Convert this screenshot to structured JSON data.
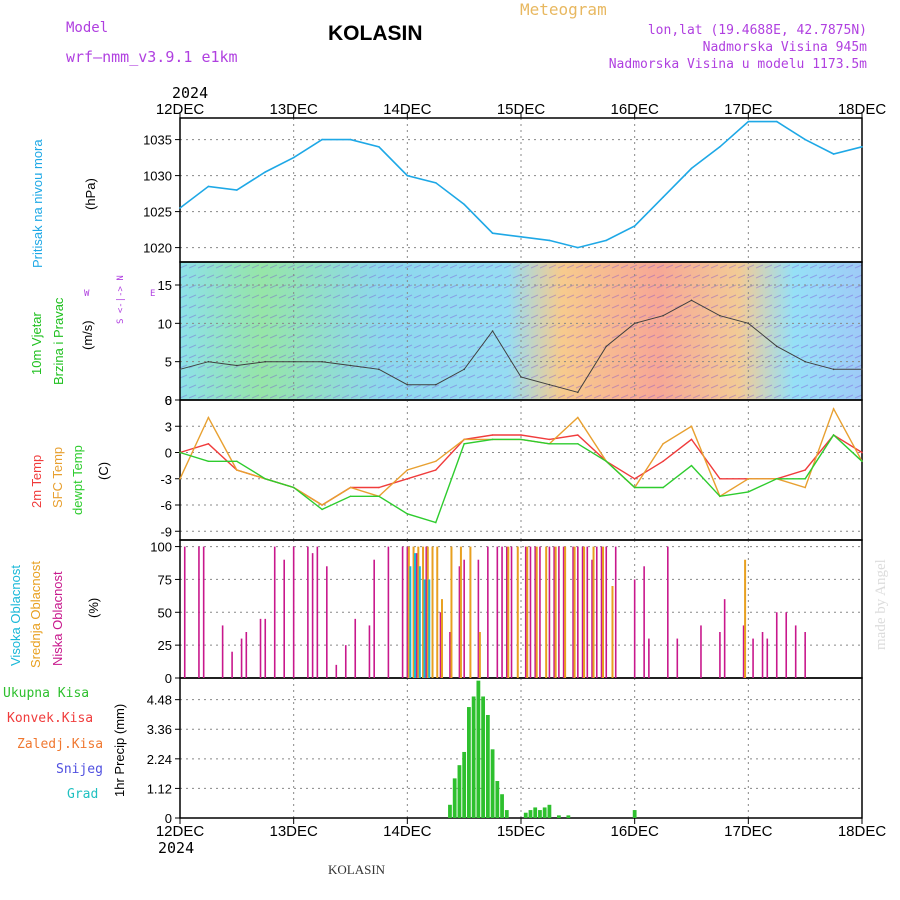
{
  "header": {
    "model_label": "Model",
    "model_value": "wrf–nmm_v3.9.1  e1km",
    "station": "KOLASIN",
    "title": "Meteogram",
    "lonlat": "lon,lat (19.4688E, 42.7875N)",
    "elevation": "Nadmorska Visina 945m",
    "model_elevation": "Nadmorska Visina u modelu 1173.5m",
    "year_top": "2024",
    "year_bottom": "2024",
    "footer": "KOLASIN",
    "watermark": "made by Angel"
  },
  "colors": {
    "pressure": "#1ea8e6",
    "temp2m": "#f03c3c",
    "sfc": "#e8a030",
    "dewpt": "#2ecc2e",
    "high_cloud": "#1ab8d8",
    "mid_cloud": "#e8a020",
    "low_cloud": "#c8188c",
    "precip": "#2ec02e",
    "wind_label": "#20c020",
    "purple": "#b040e0"
  },
  "x_axis": {
    "ticks": [
      "12DEC",
      "13DEC",
      "14DEC",
      "15DEC",
      "16DEC",
      "17DEC",
      "18DEC"
    ]
  },
  "panels": {
    "pressure": {
      "label": "Pritisak na nivou mora",
      "unit": "(hPa)",
      "ticks": [
        "1020",
        "1025",
        "1030",
        "1035"
      ]
    },
    "wind": {
      "label1": "10m Vjetar",
      "label2": "Brzina i Pravac",
      "unit": "(m/s)",
      "compass_ns": "S <-|-> N",
      "compass_w": "W",
      "compass_e": "E",
      "ticks": [
        "0",
        "5",
        "10",
        "15"
      ]
    },
    "temp": {
      "label1": "2m Temp",
      "label2": "SFC Temp",
      "label3": "dewpt Temp",
      "unit": "(C)",
      "ticks": [
        "-9",
        "-6",
        "-3",
        "0",
        "3",
        "6"
      ]
    },
    "cloud": {
      "label1": "Visoka Oblacnost",
      "label2": "Srednja Oblacnost",
      "label3": "Niska Oblacnost",
      "unit": "(%)",
      "ticks": [
        "0",
        "25",
        "50",
        "75",
        "100"
      ]
    },
    "precip": {
      "label_total": "Ukupna Kisa",
      "label_conv": "Konvek.Kisa",
      "label_frozen": "Zaledj.Kisa",
      "label_snow": "Snijeg",
      "label_grad": "Grad",
      "unit": "1hr Precip (mm)",
      "ticks": [
        "0",
        "1.12",
        "2.24",
        "3.36",
        "4.48"
      ]
    }
  },
  "chart_data": [
    {
      "type": "line",
      "name": "pressure",
      "xlabel": "",
      "ylabel": "(hPa)",
      "xlim": [
        0,
        144
      ],
      "ylim": [
        1018,
        1038
      ],
      "grid": true,
      "x": [
        0,
        6,
        12,
        18,
        24,
        30,
        36,
        42,
        48,
        54,
        60,
        66,
        72,
        78,
        84,
        90,
        96,
        102,
        108,
        114,
        120,
        126,
        132,
        138,
        144
      ],
      "series": [
        {
          "values": [
            1025.5,
            1028.5,
            1028,
            1030.5,
            1032.5,
            1035,
            1035,
            1034,
            1030,
            1029,
            1026,
            1022,
            1021.5,
            1021,
            1020,
            1021,
            1023,
            1027,
            1031,
            1034,
            1037.5,
            1037.5,
            1035,
            1033,
            1034
          ]
        }
      ]
    },
    {
      "type": "line",
      "name": "wind speed",
      "xlabel": "",
      "ylabel": "(m/s)",
      "xlim": [
        0,
        144
      ],
      "ylim": [
        0,
        18
      ],
      "grid": true,
      "x": [
        0,
        6,
        12,
        18,
        24,
        30,
        36,
        42,
        48,
        54,
        60,
        66,
        72,
        78,
        84,
        90,
        96,
        102,
        108,
        114,
        120,
        126,
        132,
        138,
        144
      ],
      "series": [
        {
          "values": [
            4,
            5,
            4.5,
            5,
            5,
            5,
            4.5,
            4,
            2,
            2,
            4,
            9,
            3,
            2,
            1,
            7,
            10,
            11,
            13,
            11,
            10,
            7,
            5,
            4,
            4
          ]
        }
      ]
    },
    {
      "type": "line",
      "name": "temperature",
      "xlabel": "",
      "ylabel": "(C)",
      "xlim": [
        0,
        144
      ],
      "ylim": [
        -10,
        6
      ],
      "grid": true,
      "x": [
        0,
        6,
        12,
        18,
        24,
        30,
        36,
        42,
        48,
        54,
        60,
        66,
        72,
        78,
        84,
        90,
        96,
        102,
        108,
        114,
        120,
        126,
        132,
        138,
        144
      ],
      "series": [
        {
          "name": "2m Temp",
          "values": [
            0,
            1,
            -2,
            -3,
            -4,
            -6,
            -4,
            -4,
            -3,
            -2,
            1.5,
            2,
            2,
            1.5,
            2,
            -1,
            -3,
            -1,
            1.5,
            -3,
            -3,
            -3,
            -2,
            2,
            0
          ]
        },
        {
          "name": "SFC Temp",
          "values": [
            -3,
            4,
            -2,
            -3,
            -4,
            -6,
            -4,
            -5,
            -2,
            -1,
            1.5,
            1.5,
            1.5,
            1,
            4,
            -1,
            -4,
            1,
            3,
            -5,
            -3,
            -3,
            -4,
            5,
            -1
          ]
        },
        {
          "name": "dewpt Temp",
          "values": [
            0,
            -1,
            -1,
            -3,
            -4,
            -6.5,
            -5,
            -5,
            -7,
            -8,
            1,
            1.5,
            1.5,
            1,
            1,
            -1,
            -4,
            -4,
            -1.5,
            -5,
            -4.5,
            -3,
            -3,
            2,
            -1
          ]
        }
      ]
    },
    {
      "type": "bar",
      "name": "cloud cover",
      "xlabel": "",
      "ylabel": "(%)",
      "xlim": [
        0,
        144
      ],
      "ylim": [
        0,
        105
      ],
      "grid": true,
      "series": [
        {
          "name": "Niska Oblacnost",
          "x": [
            1,
            4,
            5,
            9,
            11,
            13,
            14,
            17,
            18,
            20,
            22,
            24,
            27,
            28,
            29,
            31,
            33,
            35,
            37,
            40,
            41,
            44,
            47,
            48,
            50,
            52,
            55,
            57,
            59,
            60,
            63,
            65,
            67,
            68,
            69,
            70,
            73,
            74,
            75,
            76,
            78,
            79,
            80,
            81,
            83,
            84,
            85,
            86,
            87,
            88,
            89,
            90,
            92,
            96,
            98,
            99,
            103,
            105,
            110,
            114,
            115,
            119,
            121,
            123,
            124,
            126,
            128,
            130,
            132
          ],
          "values": [
            100,
            100,
            100,
            40,
            20,
            30,
            35,
            45,
            45,
            100,
            90,
            100,
            100,
            95,
            100,
            85,
            10,
            25,
            45,
            40,
            90,
            100,
            100,
            100,
            95,
            100,
            50,
            35,
            85,
            90,
            90,
            100,
            100,
            100,
            100,
            100,
            100,
            100,
            100,
            100,
            100,
            100,
            100,
            100,
            100,
            100,
            100,
            100,
            90,
            100,
            100,
            100,
            100,
            75,
            85,
            30,
            100,
            30,
            40,
            35,
            60,
            40,
            30,
            35,
            30,
            50,
            50,
            40,
            35
          ]
        },
        {
          "name": "Srednja Oblacnost",
          "x": [
            48,
            49,
            50,
            51,
            52,
            53,
            54,
            55,
            57,
            59,
            61,
            63,
            69,
            71,
            73,
            75,
            77,
            79,
            81,
            83,
            85,
            87,
            89,
            91,
            119
          ],
          "values": [
            100,
            100,
            100,
            100,
            100,
            100,
            100,
            60,
            100,
            100,
            100,
            35,
            100,
            100,
            100,
            100,
            100,
            100,
            100,
            100,
            100,
            100,
            100,
            70,
            90
          ]
        },
        {
          "name": "Visoka Oblacnost",
          "x": [
            48,
            49,
            50,
            51,
            52
          ],
          "values": [
            85,
            95,
            85,
            75,
            75
          ]
        }
      ]
    },
    {
      "type": "bar",
      "name": "precipitation",
      "xlabel": "",
      "ylabel": "1hr Precip (mm)",
      "xlim": [
        0,
        144
      ],
      "ylim": [
        0,
        5.3
      ],
      "grid": true,
      "series": [
        {
          "name": "Ukupna Kisa",
          "x": [
            57,
            58,
            59,
            60,
            61,
            62,
            63,
            64,
            65,
            66,
            67,
            68,
            69,
            73,
            74,
            75,
            76,
            77,
            78,
            80,
            82,
            96
          ],
          "values": [
            0.5,
            1.5,
            2,
            2.5,
            4.2,
            4.6,
            5.2,
            4.6,
            3.9,
            2.6,
            1.4,
            0.9,
            0.3,
            0.2,
            0.3,
            0.4,
            0.3,
            0.4,
            0.5,
            0.1,
            0.1,
            0.3
          ]
        }
      ]
    }
  ]
}
